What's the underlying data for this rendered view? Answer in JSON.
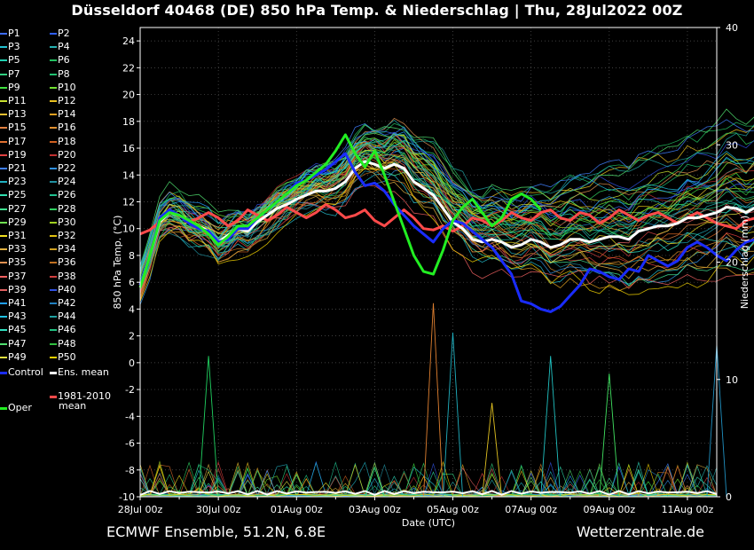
{
  "header": {
    "title": "Düsseldorf 40468 (DE)  850 hPa Temp. & Niederschlag | Thu, 28Jul2022 00Z"
  },
  "footer": {
    "left": "ECMWF Ensemble, 51.2N, 6.8E",
    "right": "Wetterzentrale.de"
  },
  "legend": {
    "members": [
      "P1",
      "P2",
      "P3",
      "P4",
      "P5",
      "P6",
      "P7",
      "P8",
      "P9",
      "P10",
      "P11",
      "P12",
      "P13",
      "P14",
      "P15",
      "P16",
      "P17",
      "P18",
      "P19",
      "P20",
      "P21",
      "P22",
      "P23",
      "P24",
      "P25",
      "P26",
      "P27",
      "P28",
      "P29",
      "P30",
      "P31",
      "P32",
      "P33",
      "P34",
      "P35",
      "P36",
      "P37",
      "P38",
      "P39",
      "P40",
      "P41",
      "P42",
      "P43",
      "P44",
      "P45",
      "P46",
      "P47",
      "P48",
      "P49",
      "P50"
    ],
    "member_colors": [
      "#3c6cff",
      "#2f5fff",
      "#22c0d0",
      "#26b0b0",
      "#20d0b0",
      "#22c060",
      "#30d080",
      "#20c070",
      "#40e040",
      "#70e030",
      "#c8e030",
      "#e8c020",
      "#e8c030",
      "#e0a020",
      "#e08040",
      "#e09030",
      "#e07030",
      "#d06020",
      "#e04040",
      "#c03030",
      "#4080ff",
      "#3090e0",
      "#20b0c0",
      "#2090a0",
      "#30e0b0",
      "#20c090",
      "#40e090",
      "#30d060",
      "#70e050",
      "#a0d020",
      "#f0e020",
      "#e0c010",
      "#e0b040",
      "#d0a020",
      "#e09050",
      "#c07020",
      "#f06060",
      "#d04040",
      "#e06060",
      "#3050e0",
      "#20a0ff",
      "#2080c0",
      "#20c0e0",
      "#20a0a0",
      "#30e0c0",
      "#20c080",
      "#50e070",
      "#30c040",
      "#e0e040",
      "#f0d000"
    ],
    "control_label": "Control",
    "ens_mean_label": "Ens. mean",
    "clim_label_1": "1981-2010",
    "clim_label_2": "mean",
    "oper_label": "Oper",
    "control_color": "#1a2cff",
    "ens_mean_color": "#ffffff",
    "clim_color": "#ff4a4a",
    "oper_color": "#22ee22"
  },
  "chart_data": {
    "type": "line",
    "title": "Düsseldorf 40468 (DE)  850 hPa Temp. & Niederschlag | Thu, 28Jul2022 00Z",
    "xlabel": "Date (UTC)",
    "ylabel": "850 hPa Temp. (°C)",
    "y2label": "Niederschlag (mm)",
    "x_ticks": [
      "28Jul 00z",
      "30Jul 00z",
      "01Aug 00z",
      "03Aug 00z",
      "05Aug 00z",
      "07Aug 00z",
      "09Aug 00z",
      "11Aug 00z"
    ],
    "x_range_days": [
      0,
      14.75
    ],
    "ylim": [
      -10,
      25
    ],
    "y_ticks": [
      -10,
      -8,
      -6,
      -4,
      -2,
      0,
      2,
      4,
      6,
      8,
      10,
      12,
      14,
      16,
      18,
      20,
      22,
      24
    ],
    "y2lim": [
      0,
      40
    ],
    "y2_ticks": [
      0,
      10,
      20,
      30,
      40
    ],
    "grid": true,
    "series": [
      {
        "name": "Ens. mean",
        "step_h": 6,
        "values": [
          5.8,
          8.0,
          10.5,
          11.2,
          11.0,
          10.5,
          10.2,
          9.8,
          9.0,
          9.5,
          10.0,
          9.8,
          10.5,
          11.0,
          11.5,
          11.8,
          12.2,
          12.5,
          12.8,
          12.8,
          13.0,
          13.5,
          14.5,
          15.0,
          14.8,
          14.5,
          14.8,
          14.5,
          13.5,
          13.0,
          12.5,
          11.5,
          10.5,
          10.0,
          9.2,
          9.0,
          9.2,
          9.0,
          8.6,
          8.8,
          9.2,
          9.0,
          8.6,
          8.8,
          9.2,
          9.2,
          9.0,
          9.2,
          9.4,
          9.4,
          9.2,
          9.8,
          10.0,
          10.2,
          10.2,
          10.4,
          10.8,
          10.8,
          11.0,
          11.2,
          11.6,
          11.5,
          11.2,
          11.6,
          12.0,
          12.2
        ]
      },
      {
        "name": "1981-2010 mean",
        "step_h": 6,
        "values": [
          9.6,
          9.9,
          10.5,
          11.2,
          11.0,
          10.5,
          10.8,
          11.2,
          10.8,
          10.2,
          10.6,
          11.4,
          11.0,
          10.6,
          11.0,
          11.6,
          11.2,
          10.8,
          11.2,
          11.8,
          11.4,
          10.8,
          11.0,
          11.4,
          10.6,
          10.2,
          10.8,
          11.4,
          10.8,
          10.0,
          9.9,
          10.2,
          9.8,
          10.2,
          10.8,
          10.6,
          10.2,
          10.6,
          11.2,
          10.8,
          10.6,
          11.2,
          11.4,
          10.8,
          10.6,
          11.2,
          11.0,
          10.4,
          10.8,
          11.4,
          11.0,
          10.6,
          11.0,
          11.2,
          10.8,
          10.4,
          10.8,
          11.2,
          10.8,
          10.4,
          10.2,
          10.0,
          10.6,
          10.8,
          10.9,
          11.0
        ]
      },
      {
        "name": "Control",
        "step_h": 6,
        "values": [
          5.8,
          8.0,
          10.8,
          11.4,
          11.0,
          10.4,
          10.0,
          9.8,
          9.0,
          9.2,
          10.0,
          10.0,
          10.8,
          11.4,
          12.0,
          12.6,
          13.4,
          13.6,
          14.0,
          14.4,
          15.0,
          15.6,
          14.2,
          13.2,
          13.4,
          12.8,
          11.8,
          11.0,
          10.2,
          9.6,
          9.0,
          10.0,
          10.6,
          10.4,
          9.8,
          9.2,
          8.6,
          7.6,
          6.6,
          4.6,
          4.4,
          4.0,
          3.8,
          4.2,
          5.0,
          5.8,
          7.0,
          6.8,
          6.4,
          6.2,
          7.0,
          6.8,
          8.0,
          7.6,
          7.2,
          7.6,
          8.6,
          9.0,
          8.6,
          8.0,
          7.6,
          8.4,
          9.0,
          9.2,
          9.4,
          9.6
        ]
      },
      {
        "name": "Oper",
        "step_h": 6,
        "values": [
          5.6,
          8.0,
          10.6,
          11.2,
          11.0,
          10.6,
          10.2,
          9.6,
          8.8,
          9.4,
          10.2,
          10.2,
          10.8,
          11.4,
          12.0,
          12.6,
          13.2,
          13.6,
          14.2,
          14.8,
          15.8,
          17.0,
          15.6,
          14.6,
          15.8,
          14.0,
          12.0,
          10.0,
          8.0,
          6.8,
          6.6,
          8.4,
          10.6,
          11.6,
          12.2,
          11.2,
          10.2,
          10.8,
          12.2,
          12.6,
          12.2,
          11.4
        ]
      }
    ],
    "ensemble": {
      "members": 50,
      "range_low": [
        -1,
        -1,
        -1,
        -1,
        -0.6,
        -0.6,
        -0.6,
        -0.8,
        -1,
        -1.4,
        -2,
        -3,
        -3.6,
        -4,
        -4,
        -4
      ],
      "range_high": [
        1,
        1,
        1,
        1.2,
        1.6,
        2,
        2.6,
        3.2,
        3.6,
        4,
        4.4,
        4.8,
        5.2,
        5.6,
        6,
        6.4
      ]
    },
    "precip_mm": {
      "ens_mean_peak": 1.0,
      "notable_member_peaks": [
        {
          "date": "29Jul 18z",
          "mm": 12.0
        },
        {
          "date": "03Aug 00z",
          "mm": 2.5
        },
        {
          "date": "04Aug 12z",
          "mm": 16.5
        },
        {
          "date": "05Aug 00z",
          "mm": 14.0
        },
        {
          "date": "06Aug 00z",
          "mm": 8.0
        },
        {
          "date": "07Aug 12z",
          "mm": 12.0
        },
        {
          "date": "09Aug 00z",
          "mm": 10.5
        },
        {
          "date": "11Aug 18z",
          "mm": 13.0
        }
      ]
    }
  }
}
